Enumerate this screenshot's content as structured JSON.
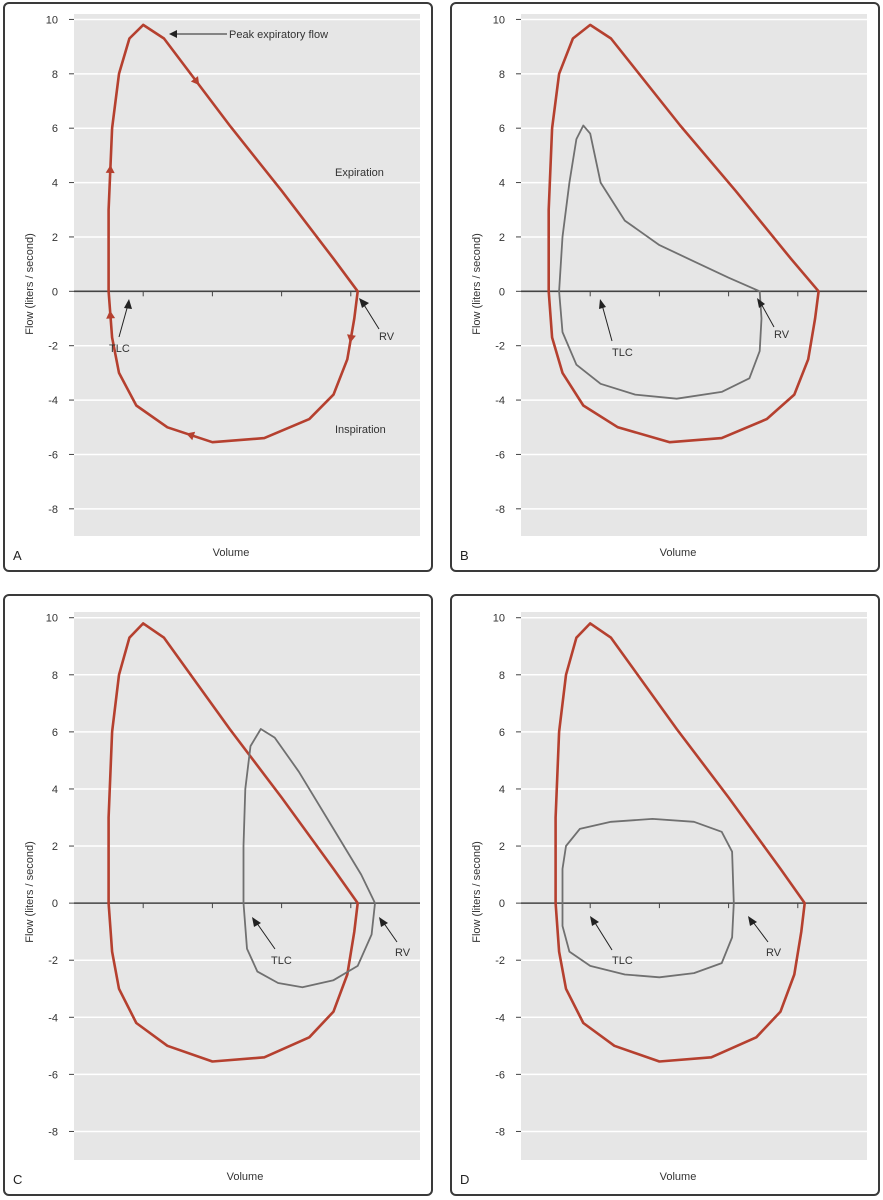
{
  "colors": {
    "normal_loop": "#b5402f",
    "abnormal_loop": "#707070",
    "plot_bg": "#e6e6e6",
    "axis": "#444444",
    "grid": "#ffffff"
  },
  "chart_data": [
    {
      "panel": "A",
      "type": "line",
      "ylabel": "Flow (liters / second)",
      "xlabel": "Volume",
      "yticks": [
        10,
        8,
        6,
        4,
        2,
        0,
        -2,
        -4,
        -6,
        -8
      ],
      "ylim": [
        -9,
        10.2
      ],
      "xlim": [
        0,
        10
      ],
      "grid": true,
      "annotations": [
        "Peak expiratory flow",
        "Expiration",
        "Inspiration",
        "TLC",
        "RV"
      ],
      "series": [
        {
          "style": "normal",
          "arrows": true,
          "points": [
            [
              1.0,
              0
            ],
            [
              1.0,
              3
            ],
            [
              1.1,
              6
            ],
            [
              1.3,
              8
            ],
            [
              1.6,
              9.3
            ],
            [
              2.0,
              9.8
            ],
            [
              2.6,
              9.3
            ],
            [
              4.5,
              6.1
            ],
            [
              6.0,
              3.7
            ],
            [
              7.5,
              1.2
            ],
            [
              8.2,
              0
            ],
            [
              8.1,
              -1
            ],
            [
              7.9,
              -2.5
            ],
            [
              7.5,
              -3.8
            ],
            [
              6.8,
              -4.7
            ],
            [
              5.5,
              -5.4
            ],
            [
              4.0,
              -5.55
            ],
            [
              2.7,
              -5.0
            ],
            [
              1.8,
              -4.2
            ],
            [
              1.3,
              -3.0
            ],
            [
              1.1,
              -1.7
            ],
            [
              1.0,
              0
            ]
          ]
        }
      ]
    },
    {
      "panel": "B",
      "type": "line",
      "ylabel": "Flow (liters / second)",
      "xlabel": "Volume",
      "yticks": [
        10,
        8,
        6,
        4,
        2,
        0,
        -2,
        -4,
        -6,
        -8
      ],
      "ylim": [
        -9,
        10.2
      ],
      "xlim": [
        0,
        10
      ],
      "grid": true,
      "annotations": [
        "TLC",
        "RV"
      ],
      "series": [
        {
          "style": "normal",
          "points": [
            [
              0.8,
              0
            ],
            [
              0.8,
              3
            ],
            [
              0.9,
              6
            ],
            [
              1.1,
              8
            ],
            [
              1.5,
              9.3
            ],
            [
              2.0,
              9.8
            ],
            [
              2.6,
              9.3
            ],
            [
              4.6,
              6.1
            ],
            [
              6.2,
              3.7
            ],
            [
              7.8,
              1.2
            ],
            [
              8.6,
              0
            ],
            [
              8.5,
              -1
            ],
            [
              8.3,
              -2.5
            ],
            [
              7.9,
              -3.8
            ],
            [
              7.1,
              -4.7
            ],
            [
              5.8,
              -5.4
            ],
            [
              4.3,
              -5.55
            ],
            [
              2.8,
              -5.0
            ],
            [
              1.8,
              -4.2
            ],
            [
              1.2,
              -3.0
            ],
            [
              0.9,
              -1.7
            ],
            [
              0.8,
              0
            ]
          ]
        },
        {
          "style": "abnormal",
          "points": [
            [
              1.1,
              0
            ],
            [
              1.2,
              2
            ],
            [
              1.4,
              4
            ],
            [
              1.6,
              5.6
            ],
            [
              1.8,
              6.1
            ],
            [
              2.0,
              5.8
            ],
            [
              2.3,
              4.0
            ],
            [
              3.0,
              2.6
            ],
            [
              4.0,
              1.7
            ],
            [
              5.0,
              1.1
            ],
            [
              6.0,
              0.5
            ],
            [
              6.9,
              0
            ],
            [
              6.95,
              -1
            ],
            [
              6.9,
              -2.2
            ],
            [
              6.6,
              -3.2
            ],
            [
              5.8,
              -3.7
            ],
            [
              4.5,
              -3.95
            ],
            [
              3.3,
              -3.8
            ],
            [
              2.3,
              -3.4
            ],
            [
              1.6,
              -2.7
            ],
            [
              1.2,
              -1.5
            ],
            [
              1.1,
              0
            ]
          ]
        }
      ]
    },
    {
      "panel": "C",
      "type": "line",
      "ylabel": "Flow (liters / second)",
      "xlabel": "Volume",
      "yticks": [
        10,
        8,
        6,
        4,
        2,
        0,
        -2,
        -4,
        -6,
        -8
      ],
      "ylim": [
        -9,
        10.2
      ],
      "xlim": [
        0,
        10
      ],
      "grid": true,
      "annotations": [
        "TLC",
        "RV"
      ],
      "series": [
        {
          "style": "normal",
          "points": [
            [
              1.0,
              0
            ],
            [
              1.0,
              3
            ],
            [
              1.1,
              6
            ],
            [
              1.3,
              8
            ],
            [
              1.6,
              9.3
            ],
            [
              2.0,
              9.8
            ],
            [
              2.6,
              9.3
            ],
            [
              4.5,
              6.1
            ],
            [
              6.0,
              3.7
            ],
            [
              7.5,
              1.2
            ],
            [
              8.2,
              0
            ],
            [
              8.1,
              -1
            ],
            [
              7.9,
              -2.5
            ],
            [
              7.5,
              -3.8
            ],
            [
              6.8,
              -4.7
            ],
            [
              5.5,
              -5.4
            ],
            [
              4.0,
              -5.55
            ],
            [
              2.7,
              -5.0
            ],
            [
              1.8,
              -4.2
            ],
            [
              1.3,
              -3.0
            ],
            [
              1.1,
              -1.7
            ],
            [
              1.0,
              0
            ]
          ]
        },
        {
          "style": "abnormal",
          "points": [
            [
              4.9,
              0
            ],
            [
              4.9,
              2
            ],
            [
              4.95,
              4
            ],
            [
              5.1,
              5.5
            ],
            [
              5.4,
              6.1
            ],
            [
              5.8,
              5.8
            ],
            [
              6.5,
              4.6
            ],
            [
              7.5,
              2.6
            ],
            [
              8.3,
              1.0
            ],
            [
              8.7,
              0
            ],
            [
              8.6,
              -1.1
            ],
            [
              8.2,
              -2.2
            ],
            [
              7.5,
              -2.7
            ],
            [
              6.6,
              -2.95
            ],
            [
              5.9,
              -2.8
            ],
            [
              5.3,
              -2.4
            ],
            [
              5.0,
              -1.6
            ],
            [
              4.9,
              0
            ]
          ]
        }
      ]
    },
    {
      "panel": "D",
      "type": "line",
      "ylabel": "Flow (liters / second)",
      "xlabel": "Volume",
      "yticks": [
        10,
        8,
        6,
        4,
        2,
        0,
        -2,
        -4,
        -6,
        -8
      ],
      "ylim": [
        -9,
        10.2
      ],
      "xlim": [
        0,
        10
      ],
      "grid": true,
      "annotations": [
        "TLC",
        "RV"
      ],
      "series": [
        {
          "style": "normal",
          "points": [
            [
              1.0,
              0
            ],
            [
              1.0,
              3
            ],
            [
              1.1,
              6
            ],
            [
              1.3,
              8
            ],
            [
              1.6,
              9.3
            ],
            [
              2.0,
              9.8
            ],
            [
              2.6,
              9.3
            ],
            [
              4.5,
              6.1
            ],
            [
              6.0,
              3.7
            ],
            [
              7.5,
              1.2
            ],
            [
              8.2,
              0
            ],
            [
              8.1,
              -1
            ],
            [
              7.9,
              -2.5
            ],
            [
              7.5,
              -3.8
            ],
            [
              6.8,
              -4.7
            ],
            [
              5.5,
              -5.4
            ],
            [
              4.0,
              -5.55
            ],
            [
              2.7,
              -5.0
            ],
            [
              1.8,
              -4.2
            ],
            [
              1.3,
              -3.0
            ],
            [
              1.1,
              -1.7
            ],
            [
              1.0,
              0
            ]
          ]
        },
        {
          "style": "abnormal",
          "points": [
            [
              1.2,
              0
            ],
            [
              1.2,
              1.2
            ],
            [
              1.3,
              2.0
            ],
            [
              1.7,
              2.6
            ],
            [
              2.6,
              2.85
            ],
            [
              3.8,
              2.95
            ],
            [
              5.0,
              2.85
            ],
            [
              5.8,
              2.5
            ],
            [
              6.1,
              1.8
            ],
            [
              6.15,
              0
            ],
            [
              6.1,
              -1.2
            ],
            [
              5.8,
              -2.1
            ],
            [
              5.0,
              -2.45
            ],
            [
              4.0,
              -2.6
            ],
            [
              3.0,
              -2.5
            ],
            [
              2.0,
              -2.2
            ],
            [
              1.4,
              -1.7
            ],
            [
              1.2,
              -0.8
            ],
            [
              1.2,
              0
            ]
          ]
        }
      ]
    }
  ],
  "labels": {
    "panel_a": "A",
    "panel_b": "B",
    "panel_c": "C",
    "panel_d": "D",
    "volume": "Volume",
    "flow": "Flow (liters / second)",
    "pef": "Peak expiratory flow",
    "expiration": "Expiration",
    "inspiration": "Inspiration",
    "tlc": "TLC",
    "rv": "RV"
  }
}
